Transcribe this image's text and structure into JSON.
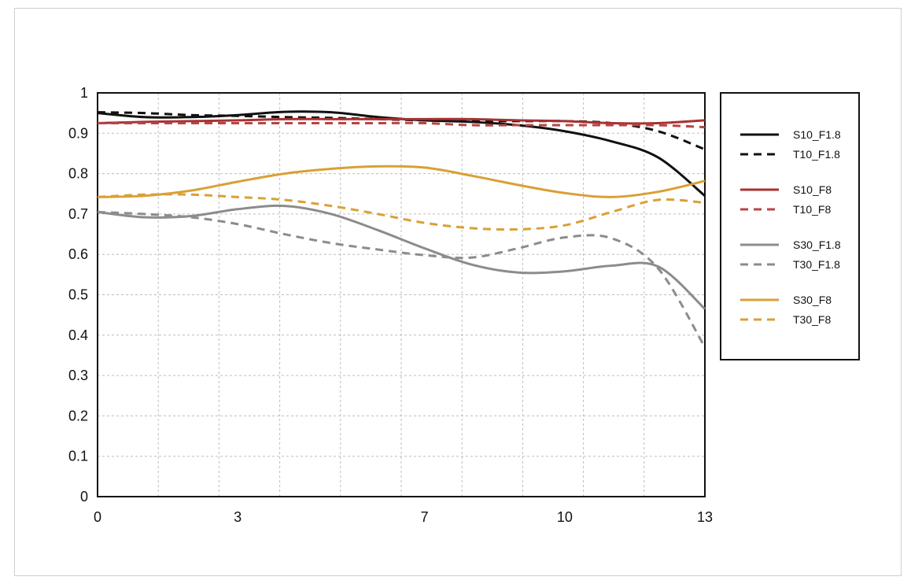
{
  "chart_data": {
    "type": "line",
    "title": "",
    "xlabel": "",
    "ylabel": "",
    "xlim": [
      0,
      13
    ],
    "ylim": [
      0,
      1
    ],
    "x_ticks": [
      0,
      3,
      7,
      10,
      13
    ],
    "x_tick_labels": [
      "0",
      "3",
      "7",
      "10",
      "13"
    ],
    "y_ticks": [
      0,
      0.1,
      0.2,
      0.3,
      0.4,
      0.5,
      0.6,
      0.7,
      0.8,
      0.9,
      1
    ],
    "y_tick_labels": [
      "0",
      "0.1",
      "0.2",
      "0.3",
      "0.4",
      "0.5",
      "0.6",
      "0.7",
      "0.8",
      "0.9",
      "1"
    ],
    "grid": true,
    "legend_position": "right",
    "series": [
      {
        "name": "S10_F1.8",
        "color": "#111111",
        "dash": "solid",
        "x": [
          0,
          1,
          2,
          3,
          4,
          5,
          6,
          7,
          8,
          9,
          10,
          11,
          12,
          13
        ],
        "y": [
          0.95,
          0.94,
          0.94,
          0.945,
          0.953,
          0.952,
          0.94,
          0.932,
          0.928,
          0.92,
          0.905,
          0.88,
          0.84,
          0.745
        ]
      },
      {
        "name": "T10_F1.8",
        "color": "#111111",
        "dash": "dashed",
        "x": [
          0,
          1,
          2,
          3,
          4,
          5,
          6,
          7,
          8,
          9,
          10,
          11,
          12,
          13
        ],
        "y": [
          0.952,
          0.95,
          0.945,
          0.943,
          0.94,
          0.938,
          0.935,
          0.932,
          0.93,
          0.93,
          0.93,
          0.925,
          0.905,
          0.86
        ]
      },
      {
        "name": "S10_F8",
        "color": "#a83232",
        "dash": "solid",
        "x": [
          0,
          1,
          2,
          3,
          4,
          5,
          6,
          7,
          8,
          9,
          10,
          11,
          12,
          13
        ],
        "y": [
          0.925,
          0.928,
          0.93,
          0.932,
          0.935,
          0.935,
          0.935,
          0.935,
          0.935,
          0.932,
          0.93,
          0.925,
          0.925,
          0.932
        ]
      },
      {
        "name": "T10_F8",
        "color": "#b84545",
        "dash": "dashed",
        "x": [
          0,
          1,
          2,
          3,
          4,
          5,
          6,
          7,
          8,
          9,
          10,
          11,
          12,
          13
        ],
        "y": [
          0.925,
          0.925,
          0.925,
          0.925,
          0.925,
          0.925,
          0.925,
          0.925,
          0.92,
          0.92,
          0.92,
          0.92,
          0.92,
          0.915
        ]
      },
      {
        "name": "S30_F1.8",
        "color": "#8c8c8c",
        "dash": "solid",
        "x": [
          0,
          1,
          2,
          3,
          4,
          5,
          6,
          7,
          8,
          9,
          10,
          11,
          12,
          13
        ],
        "y": [
          0.705,
          0.692,
          0.695,
          0.712,
          0.72,
          0.7,
          0.66,
          0.615,
          0.575,
          0.555,
          0.558,
          0.572,
          0.57,
          0.465
        ]
      },
      {
        "name": "T30_F1.8",
        "color": "#8c8c8c",
        "dash": "dashed",
        "x": [
          0,
          1,
          2,
          3,
          4,
          5,
          6,
          7,
          8,
          9,
          10,
          11,
          12,
          13
        ],
        "y": [
          0.705,
          0.7,
          0.692,
          0.675,
          0.65,
          0.628,
          0.612,
          0.598,
          0.592,
          0.615,
          0.642,
          0.64,
          0.565,
          0.37
        ]
      },
      {
        "name": "S30_F8",
        "color": "#d9a035",
        "dash": "solid",
        "x": [
          0,
          1,
          2,
          3,
          4,
          5,
          6,
          7,
          8,
          9,
          10,
          11,
          12,
          13
        ],
        "y": [
          0.742,
          0.745,
          0.758,
          0.78,
          0.8,
          0.812,
          0.818,
          0.815,
          0.795,
          0.772,
          0.752,
          0.742,
          0.755,
          0.782
        ]
      },
      {
        "name": "T30_F8",
        "color": "#d9a035",
        "dash": "dashed",
        "x": [
          0,
          1,
          2,
          3,
          4,
          5,
          6,
          7,
          8,
          9,
          10,
          11,
          12,
          13
        ],
        "y": [
          0.742,
          0.748,
          0.748,
          0.742,
          0.735,
          0.72,
          0.7,
          0.678,
          0.665,
          0.662,
          0.672,
          0.705,
          0.735,
          0.728
        ]
      }
    ],
    "legend_groups": [
      [
        "S10_F1.8",
        "T10_F1.8"
      ],
      [
        "S10_F8",
        "T10_F8"
      ],
      [
        "S30_F1.8",
        "T30_F1.8"
      ],
      [
        "S30_F8",
        "T30_F8"
      ]
    ]
  }
}
